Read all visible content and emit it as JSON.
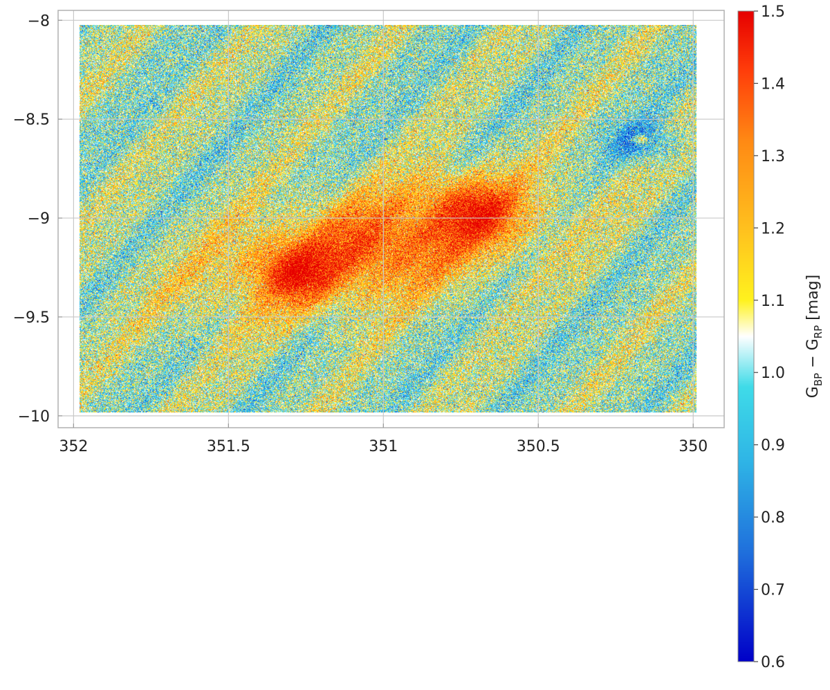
{
  "chart_data": {
    "type": "heatmap",
    "title": "",
    "xlabel": "",
    "ylabel": "",
    "xlim": [
      352.05,
      349.9
    ],
    "ylim": [
      -10.06,
      -7.95
    ],
    "data_extent": {
      "x": [
        352,
        350
      ],
      "y": [
        -10,
        -8
      ]
    },
    "x_ticks": [
      352,
      351.5,
      351,
      350.5,
      350
    ],
    "x_tick_labels": [
      "352",
      "351.5",
      "351",
      "350.5",
      "350"
    ],
    "y_ticks": [
      -8,
      -8.5,
      -9,
      -9.5,
      -10
    ],
    "y_tick_labels": [
      "−8",
      "−8.5",
      "−9",
      "−9.5",
      "−10"
    ],
    "grid": true,
    "colorbar": {
      "label_main": "G",
      "label_sub1": "BP",
      "label_mid": " − G",
      "label_sub2": "RP",
      "label_unit": " [mag]",
      "range": [
        0.6,
        1.5
      ],
      "ticks": [
        0.6,
        0.7,
        0.8,
        0.9,
        1.0,
        1.1,
        1.2,
        1.3,
        1.4,
        1.5
      ],
      "tick_labels": [
        "0.6",
        "0.7",
        "0.8",
        "0.9",
        "1.0",
        "1.1",
        "1.2",
        "1.3",
        "1.4",
        "1.5"
      ],
      "colormap_stops": [
        {
          "value": 0.6,
          "color": "#0000c8"
        },
        {
          "value": 0.75,
          "color": "#1f6fdc"
        },
        {
          "value": 0.88,
          "color": "#2fb6e6"
        },
        {
          "value": 0.98,
          "color": "#3fdbe8"
        },
        {
          "value": 1.05,
          "color": "#ffffff"
        },
        {
          "value": 1.1,
          "color": "#fff21e"
        },
        {
          "value": 1.2,
          "color": "#ffc01e"
        },
        {
          "value": 1.32,
          "color": "#ff8a14"
        },
        {
          "value": 1.42,
          "color": "#ff3c0a"
        },
        {
          "value": 1.5,
          "color": "#e60000"
        }
      ]
    },
    "features": {
      "background_level": 1.03,
      "noise_sigma": 0.13,
      "red_cloud": {
        "center": [
          351.05,
          -9.15
        ],
        "length_deg": 0.75,
        "width_deg": 0.18,
        "peak": 0.36
      },
      "red_cloud_secondary": [
        {
          "center": [
            350.72,
            -8.95
          ],
          "length_deg": 0.2,
          "width_deg": 0.12,
          "peak": 0.25
        },
        {
          "center": [
            351.3,
            -9.28
          ],
          "length_deg": 0.15,
          "width_deg": 0.1,
          "peak": 0.22
        }
      ],
      "blue_knot": {
        "center": [
          350.18,
          -8.6
        ],
        "radius_deg": 0.07,
        "dip": 0.22
      },
      "red_spot": {
        "center": [
          350.18,
          -8.59
        ],
        "radius_deg": 0.018,
        "bump": 0.35
      }
    }
  }
}
